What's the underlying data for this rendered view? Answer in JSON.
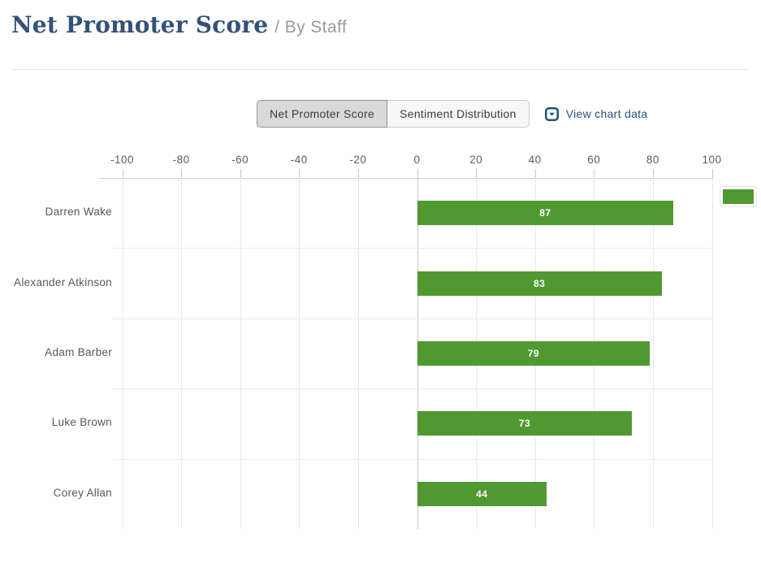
{
  "header": {
    "title": "Net Promoter Score",
    "subtitle": "/ By Staff"
  },
  "controls": {
    "tabs": [
      {
        "label": "Net Promoter Score",
        "active": true
      },
      {
        "label": "Sentiment Distribution",
        "active": false
      }
    ],
    "view_chart_data": {
      "label": "View chart data",
      "icon": "boxed-caret-down-icon"
    }
  },
  "colors": {
    "title_navy": "#33517a",
    "link_navy": "#265177",
    "bar_green": "#4f9930"
  },
  "chart_data": {
    "type": "bar",
    "orientation": "horizontal",
    "title": "Net Promoter Score / By Staff",
    "categories": [
      "Darren Wake",
      "Alexander Atkinson",
      "Adam Barber",
      "Luke Brown",
      "Corey Allan"
    ],
    "values": [
      87,
      83,
      79,
      73,
      44
    ],
    "x_ticks": [
      -100,
      -80,
      -60,
      -40,
      -20,
      0,
      20,
      40,
      60,
      80,
      100
    ],
    "xlim": [
      -100,
      100
    ],
    "grid": true,
    "bar_color": "#4f9930",
    "value_label_style": "inside-center-white-bold",
    "legend": {
      "position": "top-right",
      "swatch_color": "#4f9930",
      "label": ""
    }
  }
}
